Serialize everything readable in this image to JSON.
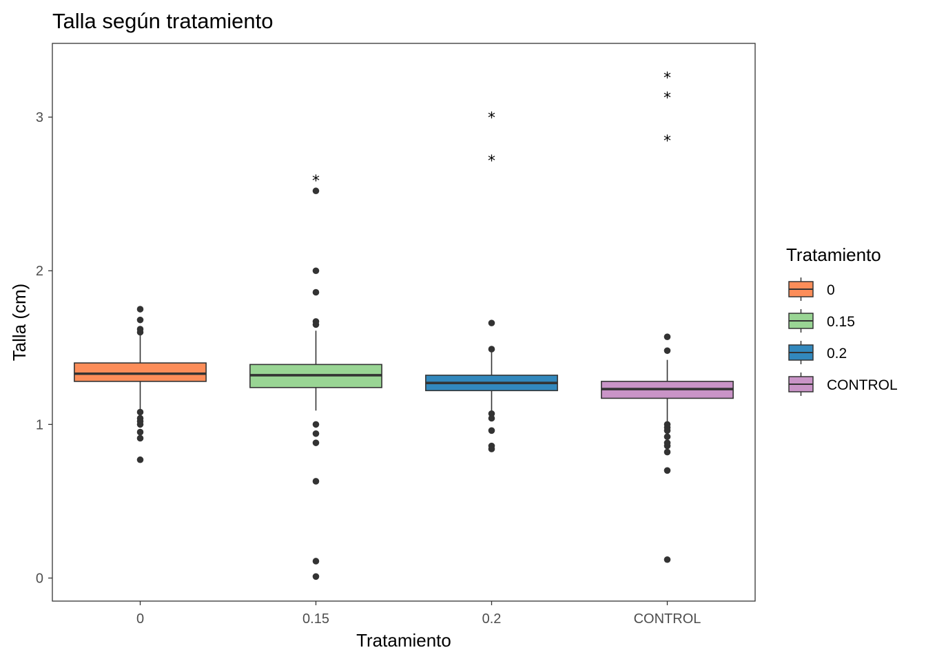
{
  "chart_data": {
    "type": "boxplot",
    "title": "Talla según tratamiento",
    "xlabel": "Tratamiento",
    "ylabel": "Talla (cm)",
    "ylim": [
      -0.15,
      3.48
    ],
    "yticks": [
      0,
      1,
      2,
      3
    ],
    "categories": [
      "0",
      "0.15",
      "0.2",
      "CONTROL"
    ],
    "legend": {
      "title": "Tratamiento",
      "position": "right",
      "entries": [
        "0",
        "0.15",
        "0.2",
        "CONTROL"
      ]
    },
    "grid": false,
    "series": [
      {
        "category": "0",
        "color": "#fc8d59",
        "q1": 1.28,
        "median": 1.33,
        "q3": 1.4,
        "whisker_low": 1.09,
        "whisker_high": 1.61,
        "outliers": [
          1.75,
          1.68,
          1.62,
          1.6,
          1.08,
          1.04,
          1.02,
          1.0,
          0.95,
          0.91,
          0.77
        ],
        "stars": []
      },
      {
        "category": "0.15",
        "color": "#99d594",
        "q1": 1.24,
        "median": 1.32,
        "q3": 1.39,
        "whisker_low": 1.09,
        "whisker_high": 1.61,
        "outliers": [
          2.52,
          2.0,
          1.86,
          1.67,
          1.65,
          1.0,
          0.94,
          0.88,
          0.63,
          0.11,
          0.01
        ],
        "stars": [
          2.62
        ]
      },
      {
        "category": "0.2",
        "color": "#3288bd",
        "q1": 1.22,
        "median": 1.27,
        "q3": 1.32,
        "whisker_low": 1.07,
        "whisker_high": 1.48,
        "outliers": [
          1.66,
          1.49,
          1.07,
          1.04,
          0.96,
          0.86,
          0.84
        ],
        "stars": [
          3.03,
          2.75
        ]
      },
      {
        "category": "CONTROL",
        "color": "#c994c7",
        "q1": 1.17,
        "median": 1.23,
        "q3": 1.28,
        "whisker_low": 1.01,
        "whisker_high": 1.42,
        "outliers": [
          1.57,
          1.48,
          1.0,
          0.98,
          0.96,
          0.92,
          0.88,
          0.86,
          0.82,
          0.7,
          0.12
        ],
        "stars": [
          3.29,
          3.16,
          2.88
        ]
      }
    ]
  }
}
